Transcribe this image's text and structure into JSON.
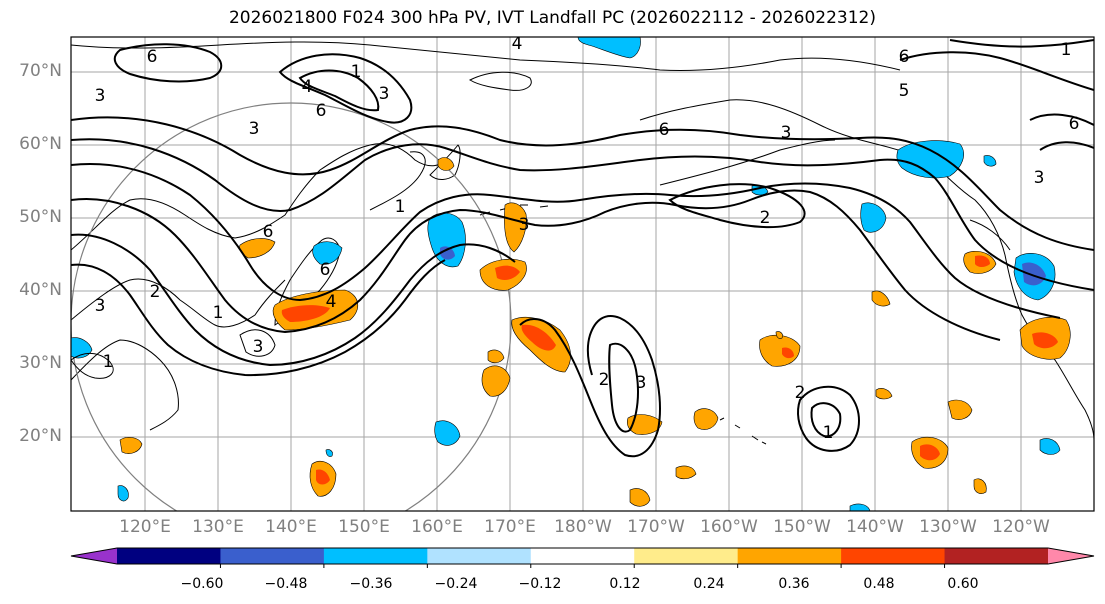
{
  "title": "2026021800 F024 300 hPa PV, IVT Landfall PC (2026022112 - 2026022312)",
  "map": {
    "lat_ticks": [
      "70°N",
      "60°N",
      "50°N",
      "40°N",
      "30°N",
      "20°N"
    ],
    "lon_ticks": [
      "120°E",
      "130°E",
      "140°E",
      "150°E",
      "160°E",
      "170°E",
      "180°W",
      "170°W",
      "160°W",
      "150°W",
      "140°W",
      "130°W",
      "120°W"
    ],
    "pv_contour_labels": [
      "6",
      "3",
      "4",
      "1",
      "3",
      "6",
      "4",
      "6",
      "3",
      "6",
      "5",
      "3",
      "6",
      "1",
      "3",
      "2",
      "1",
      "2",
      "6",
      "3",
      "1",
      "4",
      "3",
      "2",
      "3",
      "2",
      "1",
      "1",
      "6",
      "3"
    ]
  },
  "colorbar": {
    "colors": [
      "#9932CC",
      "#000080",
      "#3A5FCD",
      "#00BFFF",
      "#B0E2FF",
      "#FFFFFF",
      "#FFEC8B",
      "#FFA500",
      "#FF4500",
      "#B22222",
      "#FF88AA"
    ],
    "ticks": [
      "−0.60",
      "−0.48",
      "−0.36",
      "−0.24",
      "−0.12",
      "0.12",
      "0.24",
      "0.36",
      "0.48",
      "0.60"
    ]
  }
}
